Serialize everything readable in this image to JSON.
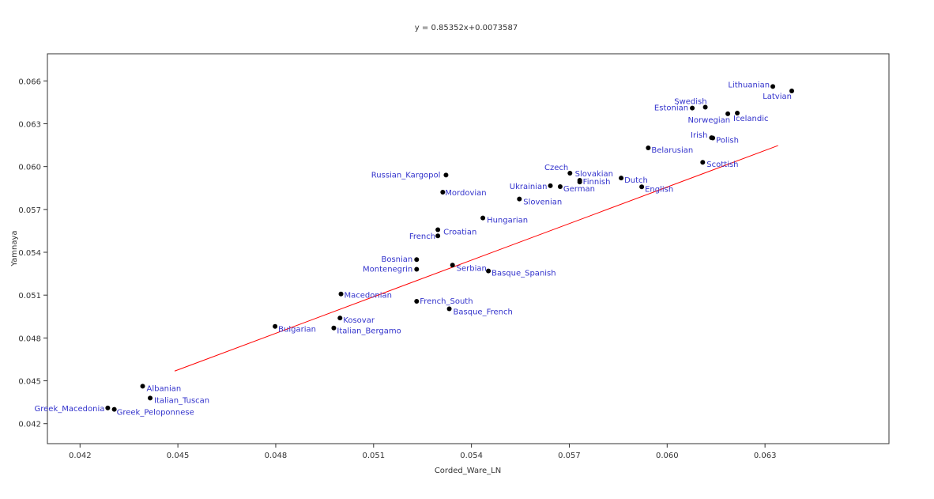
{
  "chart_data": {
    "type": "scatter",
    "title": "y = 0.85352x+0.0073587",
    "xlabel": "Corded_Ware_LN",
    "ylabel": "Yamnaya",
    "xlim": [
      0.041,
      0.0668
    ],
    "ylim": [
      0.0406,
      0.0679
    ],
    "xticks": [
      0.042,
      0.045,
      0.048,
      0.051,
      0.054,
      0.057,
      0.06,
      0.063
    ],
    "xtick_labels": [
      "0.042",
      "0.045",
      "0.048",
      "0.051",
      "0.054",
      "0.057",
      "0.060",
      "0.063"
    ],
    "yticks": [
      0.042,
      0.045,
      0.048,
      0.051,
      0.054,
      0.057,
      0.06,
      0.063,
      0.066
    ],
    "ytick_labels": [
      "0.042",
      "0.045",
      "0.048",
      "0.051",
      "0.054",
      "0.057",
      "0.060",
      "0.063",
      "0.066"
    ],
    "grid": false,
    "regression": {
      "slope": 0.85352,
      "intercept": 0.0073587,
      "x_range": [
        0.0449,
        0.0634
      ],
      "color": "#ff0000"
    },
    "marker_color": "#000000",
    "label_color": "#3333cc",
    "points": [
      {
        "name": "Lithuanian",
        "x": 0.06324,
        "y": 0.06561,
        "anchor": "end",
        "dx": -4,
        "dy": 1
      },
      {
        "name": "Latvian",
        "x": 0.06382,
        "y": 0.0653,
        "anchor": "end",
        "dx": 0,
        "dy": 10
      },
      {
        "name": "Swedish",
        "x": 0.06117,
        "y": 0.06416,
        "anchor": "end",
        "dx": 2,
        "dy": -4
      },
      {
        "name": "Estonian",
        "x": 0.06077,
        "y": 0.0641,
        "anchor": "end",
        "dx": -5,
        "dy": 3
      },
      {
        "name": "Norwegian",
        "x": 0.06186,
        "y": 0.0637,
        "anchor": "end",
        "dx": 3,
        "dy": 11
      },
      {
        "name": "Icelandic",
        "x": 0.06215,
        "y": 0.06375,
        "anchor": "start",
        "dx": -5,
        "dy": 10
      },
      {
        "name": "Irish",
        "x": 0.06136,
        "y": 0.06202,
        "anchor": "end",
        "dx": -5,
        "dy": 0
      },
      {
        "name": "Polish",
        "x": 0.0614,
        "y": 0.062,
        "anchor": "start",
        "dx": 4,
        "dy": 6
      },
      {
        "name": "Belarusian",
        "x": 0.05942,
        "y": 0.06131,
        "anchor": "start",
        "dx": 4,
        "dy": 6
      },
      {
        "name": "Scottish",
        "x": 0.06109,
        "y": 0.0603,
        "anchor": "start",
        "dx": 5,
        "dy": 6
      },
      {
        "name": "Czech",
        "x": 0.05702,
        "y": 0.05954,
        "anchor": "end",
        "dx": -2,
        "dy": -4
      },
      {
        "name": "Slovakian",
        "x": 0.05732,
        "y": 0.05904,
        "anchor": "start",
        "dx": -6,
        "dy": -5
      },
      {
        "name": "Russian_Kargopol",
        "x": 0.05322,
        "y": 0.05941,
        "anchor": "end",
        "dx": -7,
        "dy": 3
      },
      {
        "name": "Finnish",
        "x": 0.05732,
        "y": 0.05892,
        "anchor": "start",
        "dx": 4,
        "dy": 3
      },
      {
        "name": "Dutch",
        "x": 0.05859,
        "y": 0.0592,
        "anchor": "start",
        "dx": 4,
        "dy": 6
      },
      {
        "name": "Ukrainian",
        "x": 0.05642,
        "y": 0.05866,
        "anchor": "end",
        "dx": -4,
        "dy": 4
      },
      {
        "name": "German",
        "x": 0.05672,
        "y": 0.0586,
        "anchor": "start",
        "dx": 4,
        "dy": 6
      },
      {
        "name": "English",
        "x": 0.05922,
        "y": 0.05858,
        "anchor": "start",
        "dx": 4,
        "dy": 6
      },
      {
        "name": "Mordovian",
        "x": 0.05312,
        "y": 0.05821,
        "anchor": "start",
        "dx": 3,
        "dy": 4
      },
      {
        "name": "Slovenian",
        "x": 0.05547,
        "y": 0.05773,
        "anchor": "start",
        "dx": 5,
        "dy": 7
      },
      {
        "name": "Hungarian",
        "x": 0.05435,
        "y": 0.0564,
        "anchor": "start",
        "dx": 5,
        "dy": 6
      },
      {
        "name": "French",
        "x": 0.05297,
        "y": 0.05515,
        "anchor": "end",
        "dx": -3,
        "dy": 4
      },
      {
        "name": "Croatian",
        "x": 0.05297,
        "y": 0.05558,
        "anchor": "start",
        "dx": 7,
        "dy": 6
      },
      {
        "name": "Bosnian",
        "x": 0.05232,
        "y": 0.05349,
        "anchor": "end",
        "dx": -5,
        "dy": 3
      },
      {
        "name": "Montenegrin",
        "x": 0.05232,
        "y": 0.05281,
        "anchor": "end",
        "dx": -5,
        "dy": 3
      },
      {
        "name": "Serbian",
        "x": 0.05342,
        "y": 0.0531,
        "anchor": "start",
        "dx": 5,
        "dy": 7
      },
      {
        "name": "Basque_Spanish",
        "x": 0.05452,
        "y": 0.05269,
        "anchor": "start",
        "dx": 4,
        "dy": 6
      },
      {
        "name": "Macedonian",
        "x": 0.05,
        "y": 0.05108,
        "anchor": "start",
        "dx": 4,
        "dy": 5
      },
      {
        "name": "French_South",
        "x": 0.05232,
        "y": 0.05057,
        "anchor": "start",
        "dx": 4,
        "dy": 3
      },
      {
        "name": "Basque_French",
        "x": 0.05332,
        "y": 0.05004,
        "anchor": "start",
        "dx": 5,
        "dy": 7
      },
      {
        "name": "Kosovar",
        "x": 0.04997,
        "y": 0.0494,
        "anchor": "start",
        "dx": 4,
        "dy": 6
      },
      {
        "name": "Bulgarian",
        "x": 0.04798,
        "y": 0.04881,
        "anchor": "start",
        "dx": 4,
        "dy": 7
      },
      {
        "name": "Italian_Bergamo",
        "x": 0.04978,
        "y": 0.0487,
        "anchor": "start",
        "dx": 4,
        "dy": 7
      },
      {
        "name": "Albanian",
        "x": 0.04392,
        "y": 0.04462,
        "anchor": "start",
        "dx": 5,
        "dy": 6
      },
      {
        "name": "Italian_Tuscan",
        "x": 0.04415,
        "y": 0.04379,
        "anchor": "start",
        "dx": 5,
        "dy": 6
      },
      {
        "name": "Greek_Macedonia",
        "x": 0.04285,
        "y": 0.0431,
        "anchor": "end",
        "dx": -4,
        "dy": 4
      },
      {
        "name": "Greek_Peloponnese",
        "x": 0.04305,
        "y": 0.043,
        "anchor": "start",
        "dx": 3,
        "dy": 7
      }
    ]
  }
}
